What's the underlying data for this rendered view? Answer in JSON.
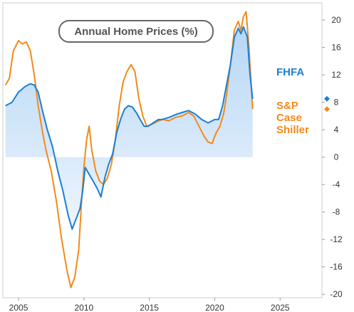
{
  "chart_data": {
    "type": "line",
    "title": "Annual Home Prices (%)",
    "xlabel": "",
    "ylabel": "",
    "xlim": [
      2003.8,
      2028.2
    ],
    "ylim": [
      -20.5,
      22.5
    ],
    "x_ticks": [
      2005,
      2010,
      2015,
      2020,
      2025
    ],
    "y_ticks": [
      20,
      16,
      12,
      8,
      4,
      0,
      -4,
      -8,
      -12,
      -16,
      -20
    ],
    "y_axis_side": "right",
    "grid": false,
    "legend_position": "right",
    "colors": {
      "fhfa": "#1a7fd4",
      "case_shiller": "#f28a1a",
      "fill_top": "#b7d7f5",
      "fill_bottom": "#eef5fd",
      "frame": "#cccccc"
    },
    "series": [
      {
        "name": "FHFA",
        "color": "#1a7fd4",
        "fill": true,
        "end_marker": "diamond",
        "points": [
          [
            2004.0,
            7.5
          ],
          [
            2004.5,
            8.0
          ],
          [
            2005.0,
            9.5
          ],
          [
            2005.5,
            10.3
          ],
          [
            2005.9,
            10.7
          ],
          [
            2006.2,
            10.5
          ],
          [
            2006.5,
            9.5
          ],
          [
            2006.8,
            7.0
          ],
          [
            2007.2,
            4.0
          ],
          [
            2007.6,
            1.5
          ],
          [
            2008.0,
            -2.0
          ],
          [
            2008.4,
            -5.0
          ],
          [
            2008.8,
            -8.5
          ],
          [
            2009.1,
            -10.5
          ],
          [
            2009.4,
            -9.0
          ],
          [
            2009.7,
            -7.5
          ],
          [
            2009.9,
            -5.0
          ],
          [
            2010.1,
            -1.5
          ],
          [
            2010.4,
            -2.5
          ],
          [
            2010.7,
            -3.5
          ],
          [
            2011.0,
            -4.5
          ],
          [
            2011.3,
            -5.8
          ],
          [
            2011.6,
            -3.0
          ],
          [
            2011.9,
            -1.0
          ],
          [
            2012.2,
            0.5
          ],
          [
            2012.5,
            3.5
          ],
          [
            2012.8,
            5.5
          ],
          [
            2013.1,
            7.0
          ],
          [
            2013.4,
            7.5
          ],
          [
            2013.7,
            7.3
          ],
          [
            2014.0,
            6.5
          ],
          [
            2014.3,
            5.5
          ],
          [
            2014.6,
            4.5
          ],
          [
            2014.9,
            4.5
          ],
          [
            2015.3,
            5.0
          ],
          [
            2015.7,
            5.5
          ],
          [
            2016.0,
            5.5
          ],
          [
            2016.5,
            5.8
          ],
          [
            2017.0,
            6.2
          ],
          [
            2017.5,
            6.5
          ],
          [
            2018.0,
            6.8
          ],
          [
            2018.5,
            6.3
          ],
          [
            2019.0,
            5.5
          ],
          [
            2019.5,
            5.0
          ],
          [
            2020.0,
            5.5
          ],
          [
            2020.3,
            5.5
          ],
          [
            2020.6,
            7.5
          ],
          [
            2020.9,
            10.5
          ],
          [
            2021.2,
            13.5
          ],
          [
            2021.5,
            17.5
          ],
          [
            2021.8,
            18.8
          ],
          [
            2022.0,
            18.0
          ],
          [
            2022.2,
            19.0
          ],
          [
            2022.5,
            17.5
          ],
          [
            2022.7,
            12.0
          ],
          [
            2022.9,
            8.5
          ]
        ]
      },
      {
        "name": "S&P Case Shiller",
        "color": "#f28a1a",
        "fill": false,
        "end_marker": "diamond",
        "points": [
          [
            2004.0,
            10.5
          ],
          [
            2004.3,
            11.5
          ],
          [
            2004.6,
            15.5
          ],
          [
            2005.0,
            17.0
          ],
          [
            2005.3,
            16.5
          ],
          [
            2005.6,
            16.8
          ],
          [
            2005.9,
            15.5
          ],
          [
            2006.2,
            12.0
          ],
          [
            2006.5,
            7.5
          ],
          [
            2006.8,
            4.0
          ],
          [
            2007.1,
            1.0
          ],
          [
            2007.5,
            -2.0
          ],
          [
            2007.9,
            -6.5
          ],
          [
            2008.3,
            -12.0
          ],
          [
            2008.7,
            -16.5
          ],
          [
            2009.0,
            -19.0
          ],
          [
            2009.3,
            -17.5
          ],
          [
            2009.6,
            -13.5
          ],
          [
            2009.8,
            -7.0
          ],
          [
            2010.0,
            -1.5
          ],
          [
            2010.2,
            2.5
          ],
          [
            2010.4,
            4.5
          ],
          [
            2010.6,
            1.0
          ],
          [
            2010.9,
            -2.0
          ],
          [
            2011.2,
            -3.5
          ],
          [
            2011.5,
            -4.0
          ],
          [
            2011.8,
            -3.0
          ],
          [
            2012.1,
            -1.0
          ],
          [
            2012.4,
            2.5
          ],
          [
            2012.7,
            7.5
          ],
          [
            2013.0,
            11.0
          ],
          [
            2013.3,
            12.5
          ],
          [
            2013.6,
            13.5
          ],
          [
            2013.9,
            12.5
          ],
          [
            2014.2,
            8.5
          ],
          [
            2014.5,
            6.0
          ],
          [
            2014.8,
            4.5
          ],
          [
            2015.2,
            4.8
          ],
          [
            2015.6,
            5.2
          ],
          [
            2016.0,
            5.5
          ],
          [
            2016.5,
            5.3
          ],
          [
            2017.0,
            5.8
          ],
          [
            2017.5,
            6.0
          ],
          [
            2018.0,
            6.5
          ],
          [
            2018.4,
            6.0
          ],
          [
            2018.8,
            4.5
          ],
          [
            2019.2,
            3.0
          ],
          [
            2019.5,
            2.2
          ],
          [
            2019.8,
            2.0
          ],
          [
            2020.1,
            3.5
          ],
          [
            2020.4,
            4.5
          ],
          [
            2020.7,
            6.5
          ],
          [
            2020.9,
            9.0
          ],
          [
            2021.2,
            13.5
          ],
          [
            2021.5,
            18.5
          ],
          [
            2021.8,
            19.8
          ],
          [
            2022.0,
            18.5
          ],
          [
            2022.2,
            20.5
          ],
          [
            2022.4,
            21.2
          ],
          [
            2022.6,
            16.5
          ],
          [
            2022.9,
            7.0
          ]
        ]
      }
    ],
    "legend": [
      {
        "label": "FHFA",
        "series": 0
      },
      {
        "label": "S&P\nCase\nShiller",
        "series": 1
      }
    ]
  }
}
